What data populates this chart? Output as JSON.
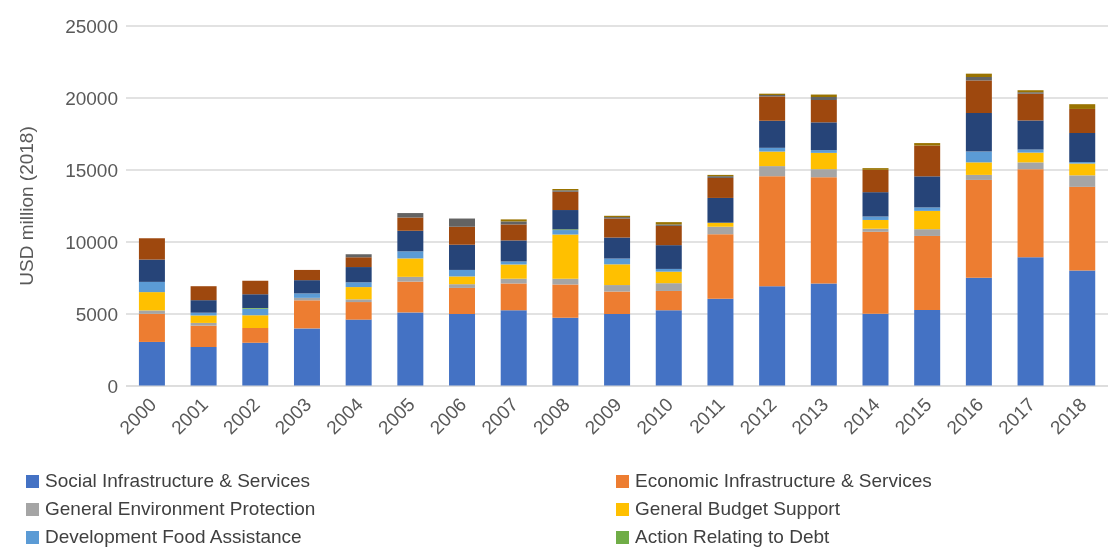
{
  "chart_data": {
    "type": "bar",
    "stacked": true,
    "ylabel": "USD million (2018)",
    "categories": [
      "2000",
      "2001",
      "2002",
      "2003",
      "2004",
      "2005",
      "2006",
      "2007",
      "2008",
      "2009",
      "2010",
      "2011",
      "2012",
      "2013",
      "2014",
      "2015",
      "2016",
      "2017",
      "2018"
    ],
    "ylim": [
      0,
      25000
    ],
    "yticks": [
      0,
      5000,
      10000,
      15000,
      20000,
      25000
    ],
    "grid": "y",
    "legend": "bottom",
    "series": [
      {
        "name": "Social Infrastructure & Services",
        "color": "#4472c4",
        "values": [
          3060,
          2710,
          3010,
          4000,
          4610,
          5110,
          5000,
          5260,
          4740,
          5000,
          5260,
          6060,
          6920,
          7110,
          5010,
          5270,
          7510,
          8940,
          8020
        ]
      },
      {
        "name": "Economic Infrastructure & Services",
        "color": "#ed7d31",
        "values": [
          1950,
          1480,
          1010,
          1950,
          1220,
          2140,
          1810,
          1860,
          2310,
          1560,
          1340,
          4480,
          7650,
          7390,
          5700,
          5150,
          6800,
          6120,
          5810
        ]
      },
      {
        "name": "General Environment Protection",
        "color": "#a5a5a5",
        "values": [
          240,
          190,
          null,
          170,
          190,
          330,
          260,
          330,
          400,
          450,
          540,
          520,
          700,
          560,
          210,
          470,
          350,
          470,
          800
        ]
      },
      {
        "name": "General Budget Support",
        "color": "#ffc000",
        "values": [
          1270,
          520,
          890,
          null,
          850,
          1280,
          540,
          990,
          3070,
          1440,
          800,
          280,
          1010,
          1130,
          610,
          1270,
          870,
          680,
          820
        ]
      },
      {
        "name": "Development Food Assistance",
        "color": "#5b9bd5",
        "values": [
          710,
          190,
          450,
          310,
          330,
          490,
          450,
          210,
          310,
          400,
          190,
          0,
          260,
          190,
          240,
          240,
          750,
          210,
          100
        ]
      },
      {
        "name": "Action Relating to Debt",
        "color": "#70ad47",
        "values": [
          0,
          0,
          50,
          0,
          0,
          0,
          0,
          null,
          50,
          0,
          0,
          0,
          0,
          0,
          0,
          0,
          0,
          0,
          0
        ]
      },
      {
        "color": "#264478",
        "values": [
          1550,
          870,
          960,
          920,
          1060,
          1430,
          1750,
          1460,
          1340,
          1460,
          1650,
          1720,
          1880,
          1930,
          1690,
          2160,
          2680,
          2020,
          2020
        ]
      },
      {
        "color": "#9e480e",
        "values": [
          1480,
          970,
          940,
          710,
          680,
          920,
          1250,
          1110,
          1270,
          1320,
          1340,
          1390,
          1690,
          1550,
          1550,
          2140,
          2260,
          1860,
          1670
        ]
      },
      {
        "color": "#636363",
        "values": [
          0,
          0,
          0,
          0,
          210,
          310,
          570,
          210,
          100,
          100,
          100,
          120,
          100,
          210,
          0,
          0,
          240,
          100,
          0
        ]
      },
      {
        "color": "#997300",
        "values": [
          0,
          0,
          0,
          0,
          0,
          0,
          0,
          140,
          90,
          90,
          160,
          90,
          90,
          170,
          120,
          170,
          230,
          140,
          330
        ]
      }
    ]
  }
}
